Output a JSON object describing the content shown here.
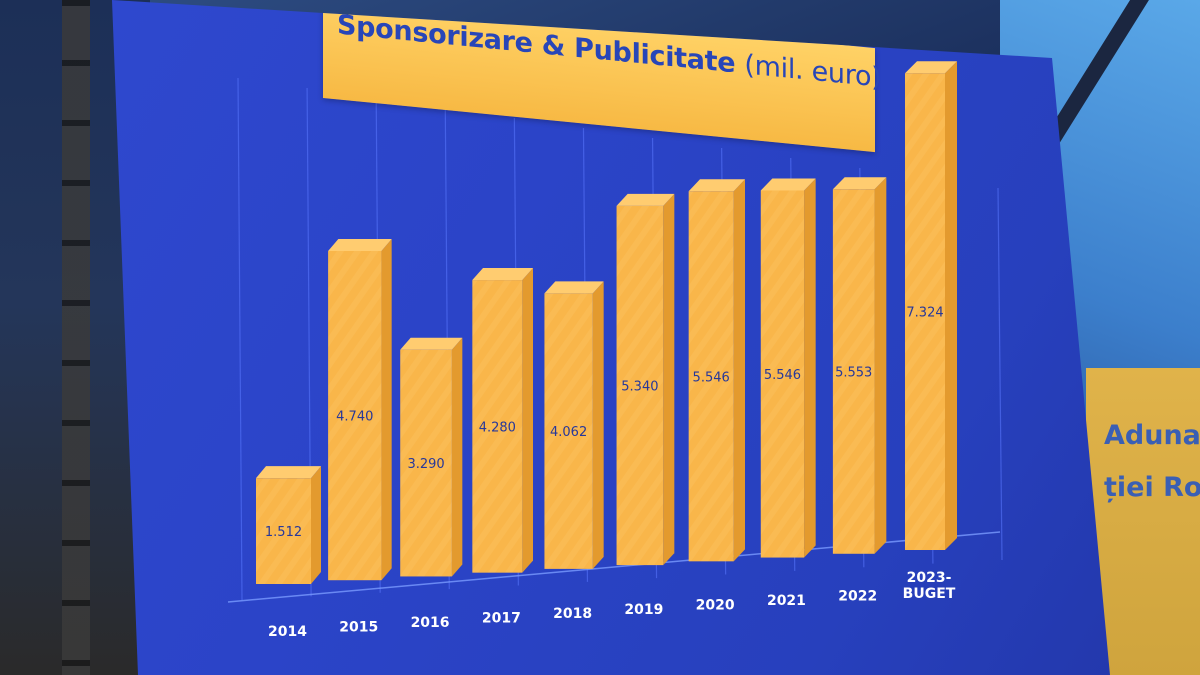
{
  "colors": {
    "screen_blue": "#2b44c8",
    "bar_front": "#f9b64a",
    "bar_side": "#e39a2e",
    "bar_top": "#ffcc70",
    "value_text": "#27389a",
    "axis_label": "#ffffff",
    "title_bg": "#f9c354",
    "title_text": "#2846b8"
  },
  "background": {
    "banner_lines": [
      "Aduna",
      "ției Ron"
    ]
  },
  "chart_data": {
    "type": "bar",
    "title": "Sponsorizare & Publicitate",
    "title_unit": "(mil. euro)",
    "categories": [
      [
        "2014"
      ],
      [
        "2015"
      ],
      [
        "2016"
      ],
      [
        "2017"
      ],
      [
        "2018"
      ],
      [
        "2019"
      ],
      [
        "2020"
      ],
      [
        "2021"
      ],
      [
        "2022"
      ],
      [
        "2023-",
        "BUGET"
      ]
    ],
    "values": [
      1.512,
      4.74,
      3.29,
      4.28,
      4.062,
      5.34,
      5.546,
      5.546,
      5.553,
      7.324
    ],
    "value_labels": [
      "1.512",
      "4.740",
      "3.290",
      "4.280",
      "4.062",
      "5.340",
      "5.546",
      "5.546",
      "5.553",
      "7.324"
    ],
    "ylim": [
      0,
      8
    ],
    "grid": true,
    "legend": "none"
  }
}
